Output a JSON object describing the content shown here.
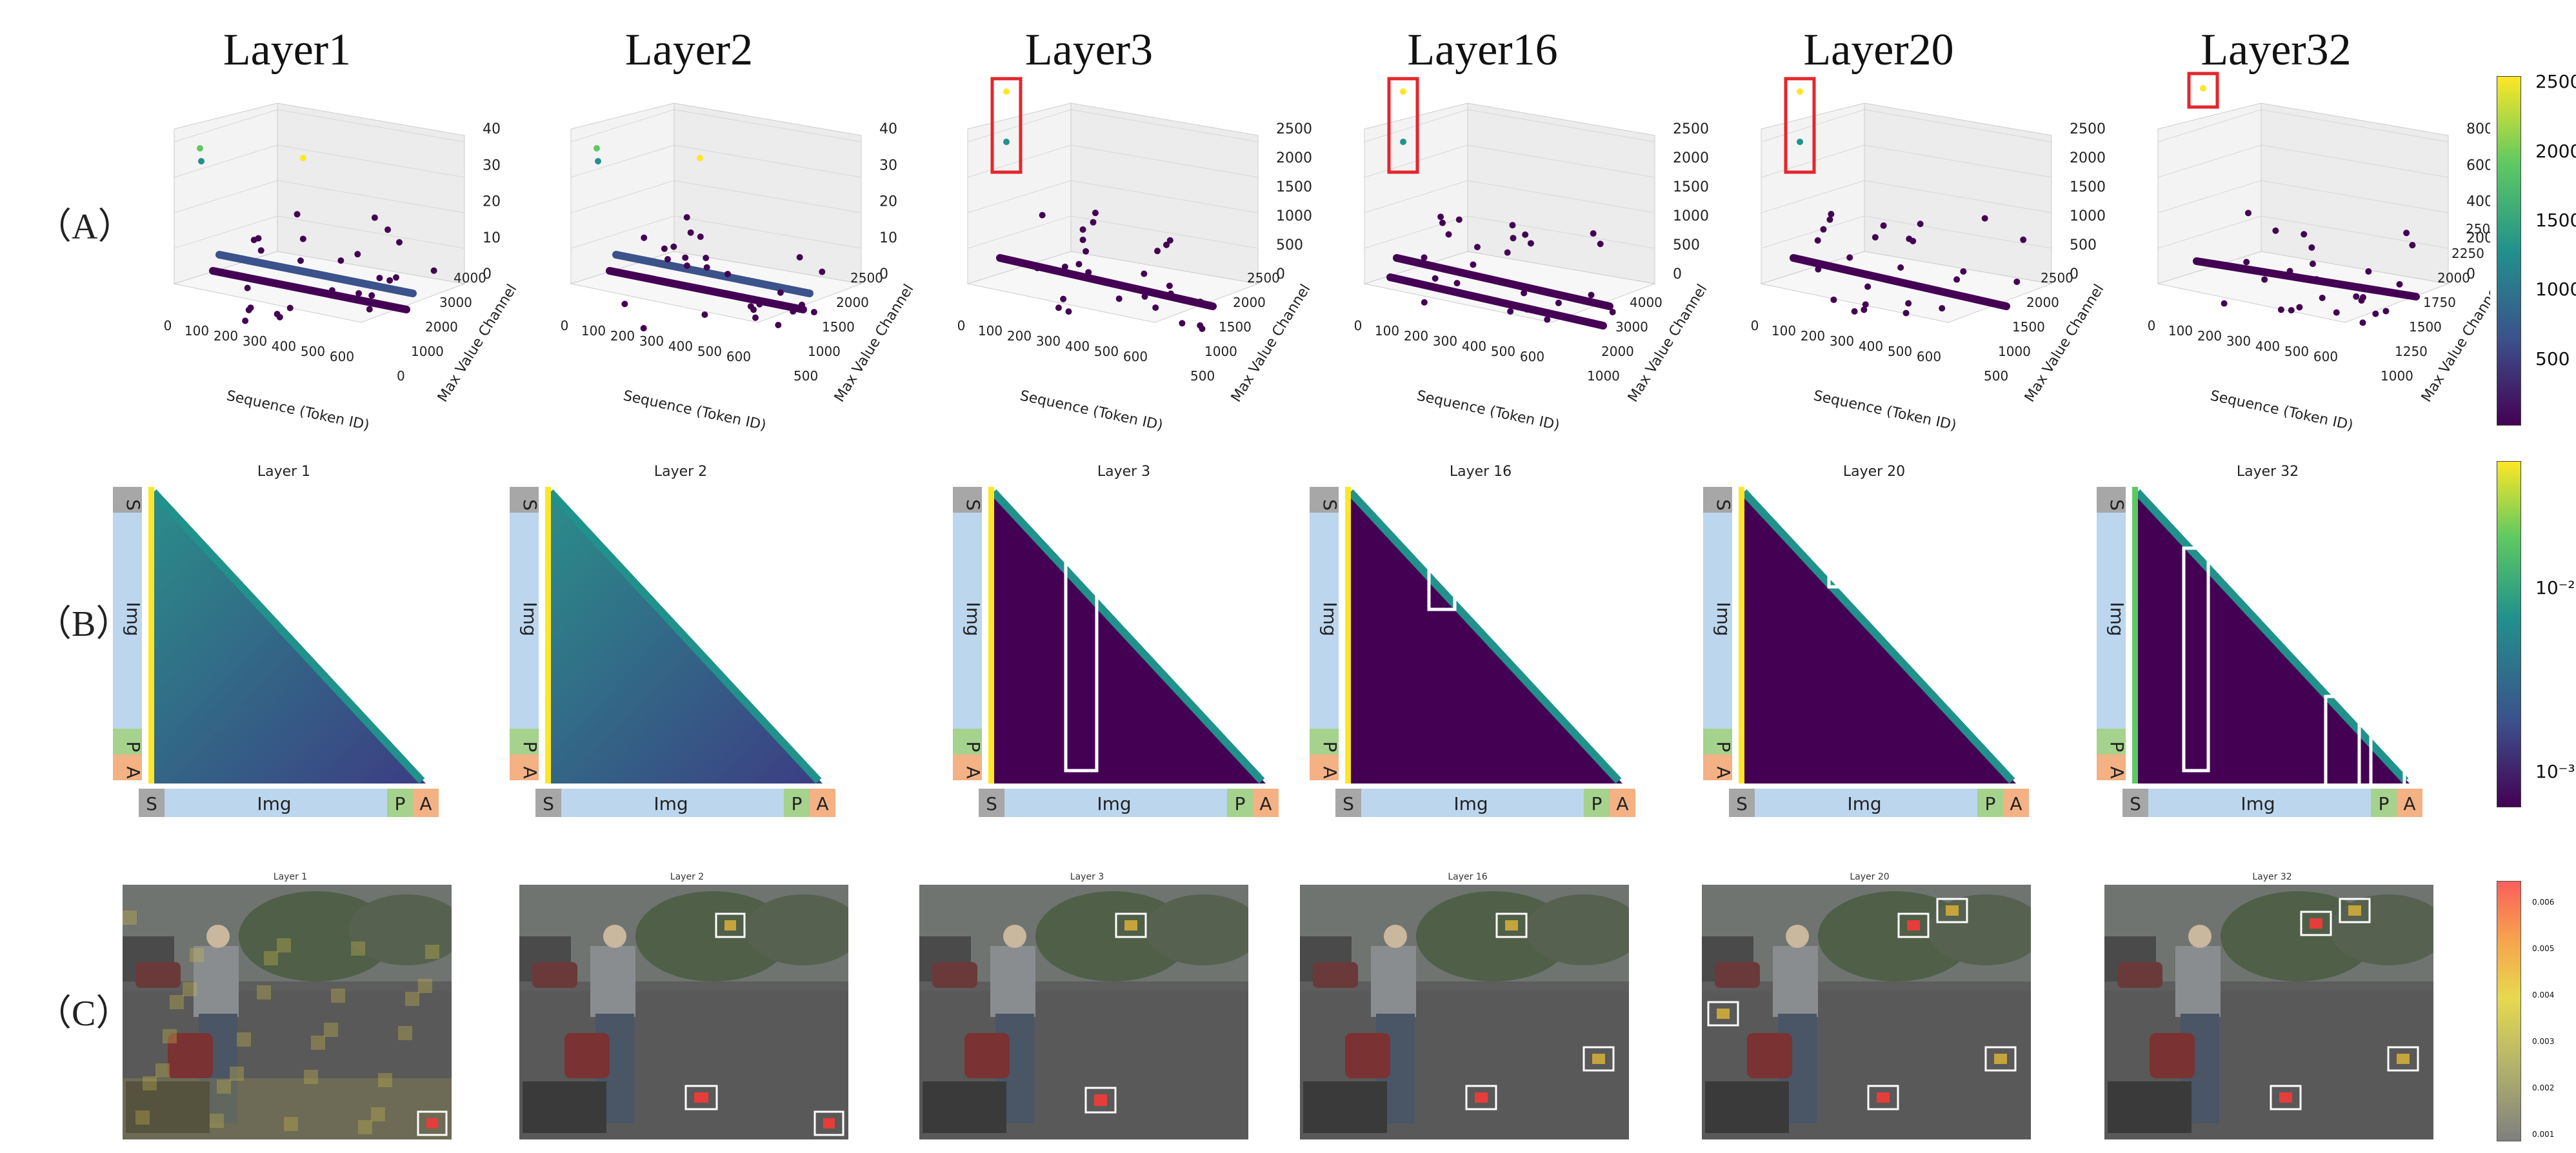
{
  "colors": {
    "viridis_dark": "#440154",
    "viridis_blue": "#3b528b",
    "viridis_teal": "#21918c",
    "viridis_green": "#5ec962",
    "viridis_yellow": "#fde725",
    "highlight_red": "#e3262b",
    "tag_gray": "#a7a7a7",
    "tag_blue": "#bcd6ee",
    "tag_green": "#a5d28d",
    "tag_orange": "#f4b183"
  },
  "row_labels": {
    "a": "（A）",
    "b": "（B）",
    "c": "（C）"
  },
  "layer_titles": [
    "Layer1",
    "Layer2",
    "Layer3",
    "Layer16",
    "Layer20",
    "Layer32"
  ],
  "panel_a": {
    "x_axis_label": "Sequence (Token ID)",
    "y_axis_label": "Max Value Channel",
    "x_ticks": [
      "0",
      "100",
      "200",
      "300",
      "400",
      "500",
      "600"
    ],
    "plots": [
      {
        "layer": "Layer1",
        "z_ticks": [
          "0",
          "10",
          "20",
          "30",
          "40"
        ],
        "y_ticks": [
          "0",
          "1000",
          "2000",
          "3000",
          "4000"
        ],
        "highlight": false
      },
      {
        "layer": "Layer2",
        "z_ticks": [
          "0",
          "10",
          "20",
          "30",
          "40"
        ],
        "y_ticks": [
          "500",
          "1000",
          "1500",
          "2000",
          "2500"
        ],
        "highlight": false
      },
      {
        "layer": "Layer3",
        "z_ticks": [
          "0",
          "500",
          "1000",
          "1500",
          "2000",
          "2500"
        ],
        "y_ticks": [
          "500",
          "1000",
          "1500",
          "2000",
          "2500"
        ],
        "highlight": true
      },
      {
        "layer": "Layer16",
        "z_ticks": [
          "0",
          "500",
          "1000",
          "1500",
          "2000",
          "2500"
        ],
        "y_ticks": [
          "1000",
          "2000",
          "3000",
          "4000"
        ],
        "highlight": true
      },
      {
        "layer": "Layer20",
        "z_ticks": [
          "0",
          "500",
          "1000",
          "1500",
          "2000",
          "2500"
        ],
        "y_ticks": [
          "500",
          "1000",
          "1500",
          "2000",
          "2500"
        ],
        "highlight": true
      },
      {
        "layer": "Layer32",
        "z_ticks": [
          "0",
          "200",
          "400",
          "600",
          "800"
        ],
        "y_ticks": [
          "1000",
          "1250",
          "1500",
          "1750",
          "2000",
          "2250",
          "2500"
        ],
        "highlight": true
      }
    ],
    "colorbar_ticks": [
      "500",
      "1000",
      "1500",
      "2000",
      "2500"
    ]
  },
  "panel_b": {
    "titles": [
      "Layer 1",
      "Layer 2",
      "Layer 3",
      "Layer 16",
      "Layer 20",
      "Layer 32"
    ],
    "tags": {
      "s": "S",
      "img": "Img",
      "p": "P",
      "a": "A"
    },
    "colorbar_ticks": [
      "10⁻²",
      "10⁻³"
    ]
  },
  "panel_c": {
    "titles": [
      "Layer 1",
      "Layer 2",
      "Layer 3",
      "Layer 16",
      "Layer 20",
      "Layer 32"
    ],
    "colorbar_ticks": [
      "0.006",
      "0.005",
      "0.004",
      "0.003",
      "0.002",
      "0.001"
    ]
  }
}
